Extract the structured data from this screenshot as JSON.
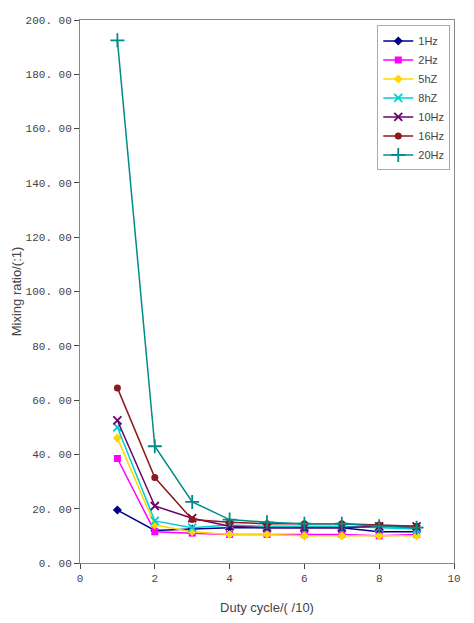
{
  "chart_data": {
    "type": "line",
    "xlabel": "Duty cycle/( /10)",
    "ylabel": "Mixing ratio/(:1)",
    "x": [
      1,
      2,
      3,
      4,
      5,
      6,
      7,
      8,
      9
    ],
    "series": [
      {
        "name": "1Hz",
        "color": "#00008B",
        "marker": "diamond",
        "values": [
          19.5,
          12.0,
          12.5,
          13.0,
          13.0,
          13.0,
          13.0,
          11.5,
          11.5
        ]
      },
      {
        "name": "2Hz",
        "color": "#FF00FF",
        "marker": "square",
        "values": [
          38.5,
          11.5,
          11.0,
          10.5,
          10.5,
          10.5,
          10.5,
          10.0,
          10.5
        ]
      },
      {
        "name": "5hZ",
        "color": "#FFD700",
        "marker": "diamond",
        "values": [
          46.0,
          14.0,
          11.5,
          10.5,
          10.5,
          10.0,
          10.0,
          10.0,
          10.0
        ]
      },
      {
        "name": "8hZ",
        "color": "#00CED1",
        "marker": "x",
        "values": [
          50.0,
          15.5,
          13.0,
          14.0,
          13.5,
          13.5,
          13.5,
          13.0,
          12.5
        ]
      },
      {
        "name": "10Hz",
        "color": "#6B006B",
        "marker": "x",
        "values": [
          52.5,
          21.0,
          16.5,
          13.5,
          13.0,
          13.0,
          13.0,
          13.5,
          13.5
        ]
      },
      {
        "name": "16Hz",
        "color": "#8B1A1A",
        "marker": "circle",
        "values": [
          64.5,
          31.5,
          16.0,
          15.0,
          14.5,
          14.5,
          14.5,
          14.0,
          13.5
        ]
      },
      {
        "name": "20Hz",
        "color": "#008B8B",
        "marker": "plus",
        "values": [
          192.5,
          43.0,
          22.5,
          16.0,
          15.0,
          14.5,
          14.5,
          13.5,
          13.0
        ]
      }
    ],
    "xlim": [
      0,
      10
    ],
    "xticks": [
      0,
      2,
      4,
      6,
      8,
      10
    ],
    "ylim": [
      0.0,
      200.0
    ],
    "yticks": [
      {
        "value": 0.0,
        "label": "0. 00"
      },
      {
        "value": 20.0,
        "label": "20. 00"
      },
      {
        "value": 40.0,
        "label": "40. 00"
      },
      {
        "value": 60.0,
        "label": "60. 00"
      },
      {
        "value": 80.0,
        "label": "80. 00"
      },
      {
        "value": 100.0,
        "label": "100. 00"
      },
      {
        "value": 120.0,
        "label": "120. 00"
      },
      {
        "value": 140.0,
        "label": "140. 00"
      },
      {
        "value": 160.0,
        "label": "160. 00"
      },
      {
        "value": 180.0,
        "label": "180. 00"
      },
      {
        "value": 200.0,
        "label": "200. 00"
      }
    ],
    "grid": false,
    "legend": "upper right"
  }
}
